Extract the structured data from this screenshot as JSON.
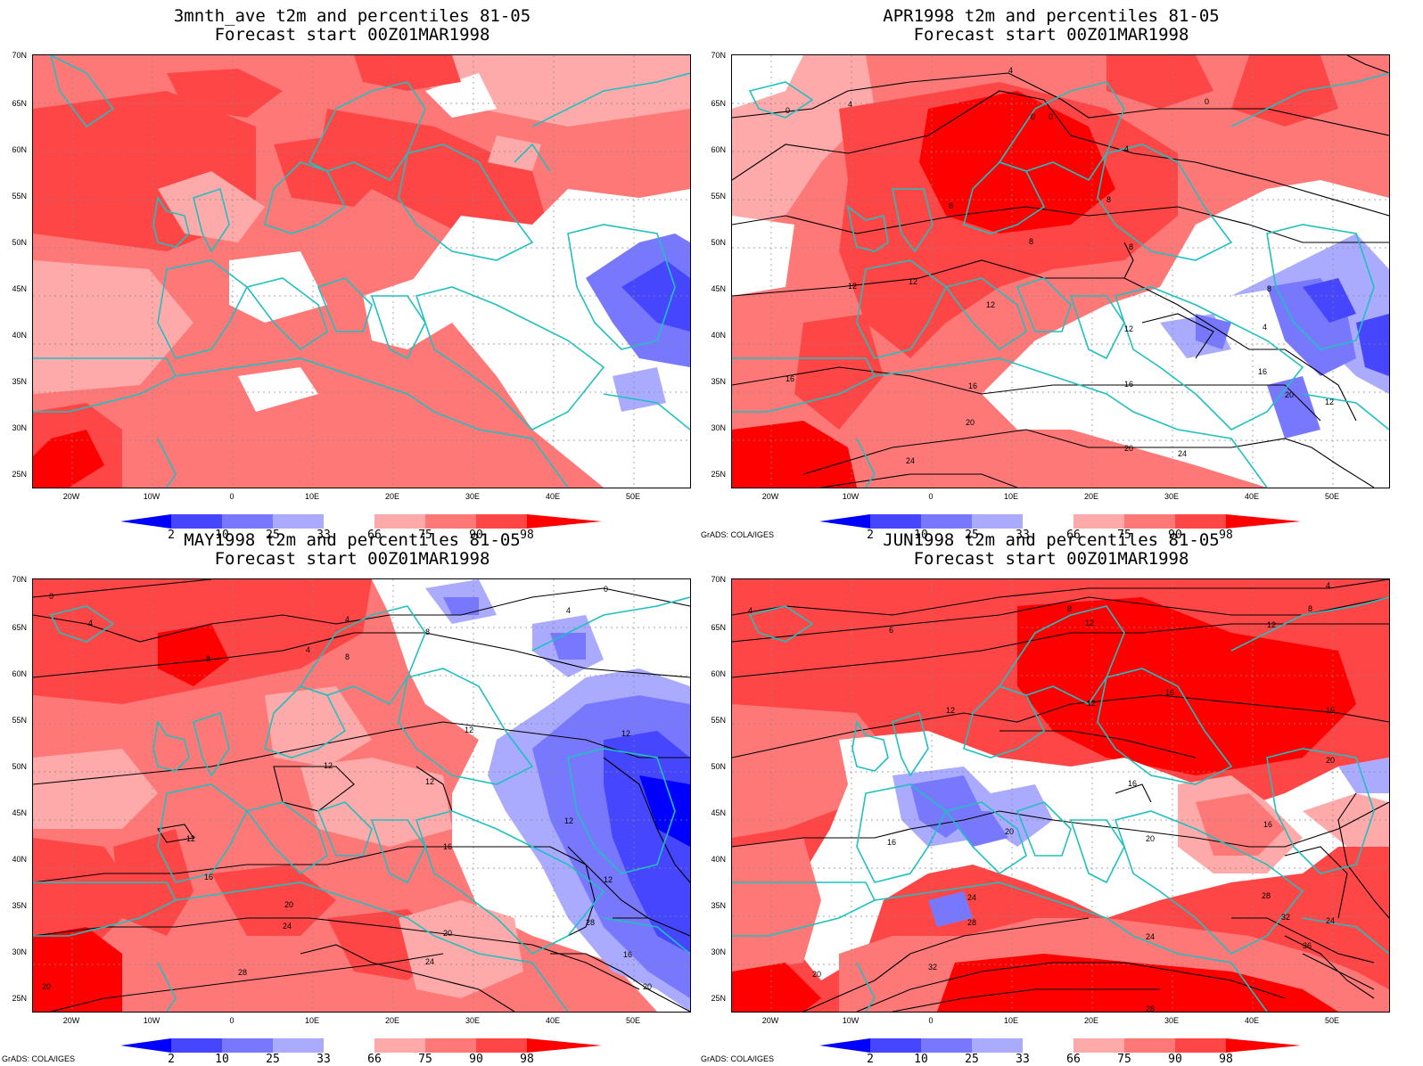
{
  "panels": [
    {
      "title1": "3mnth_ave t2m and percentiles 81-05",
      "title2": "Forecast start 00Z01MAR1998",
      "credit": ""
    },
    {
      "title1": "APR1998 t2m and percentiles 81-05",
      "title2": "Forecast start 00Z01MAR1998",
      "credit": "GrADS: COLA/IGES"
    },
    {
      "title1": "MAY1998 t2m and percentiles 81-05",
      "title2": "Forecast start 00Z01MAR1998",
      "credit": "GrADS: COLA/IGES"
    },
    {
      "title1": "JUN1998 t2m and percentiles 81-05",
      "title2": "Forecast start 00Z01MAR1998",
      "credit": "GrADS: COLA/IGES"
    }
  ],
  "lat_labels": [
    "70N",
    "65N",
    "60N",
    "55N",
    "50N",
    "45N",
    "40N",
    "35N",
    "30N",
    "25N"
  ],
  "lon_labels": [
    "20W",
    "10W",
    "0",
    "10E",
    "20E",
    "30E",
    "40E",
    "50E"
  ],
  "colorbar": {
    "ticks": [
      "2",
      "10",
      "25",
      "33",
      "66",
      "75",
      "90",
      "98"
    ],
    "colors": [
      "#0000ff",
      "#4646ff",
      "#7878ff",
      "#aaaaff",
      "#ffffff",
      "#ffaaaa",
      "#ff7878",
      "#ff4646",
      "#ff0000"
    ]
  },
  "contour_labels": {
    "apr": [
      "4",
      "0",
      "4",
      "0",
      "0",
      "0",
      "4",
      "8",
      "8",
      "8",
      "8",
      "8",
      "12",
      "12",
      "12",
      "12",
      "16",
      "16",
      "16",
      "16",
      "20",
      "20",
      "20",
      "24",
      "24",
      "12",
      "4"
    ],
    "may": [
      "0",
      "4",
      "4",
      "8",
      "4",
      "8",
      "0",
      "4",
      "8",
      "12",
      "12",
      "12",
      "12",
      "12",
      "16",
      "16",
      "16",
      "20",
      "20",
      "20",
      "24",
      "24",
      "28",
      "28",
      "20",
      "12",
      "12"
    ],
    "jun": [
      "4",
      "6",
      "8",
      "12",
      "12",
      "4",
      "8",
      "12",
      "16",
      "16",
      "12",
      "16",
      "20",
      "16",
      "20",
      "16",
      "20",
      "24",
      "28",
      "24",
      "28",
      "32",
      "20",
      "32",
      "36",
      "24",
      "28"
    ]
  },
  "colors": {
    "coast": "#20c0c0",
    "contour": "#000000",
    "grid": "#888888"
  }
}
